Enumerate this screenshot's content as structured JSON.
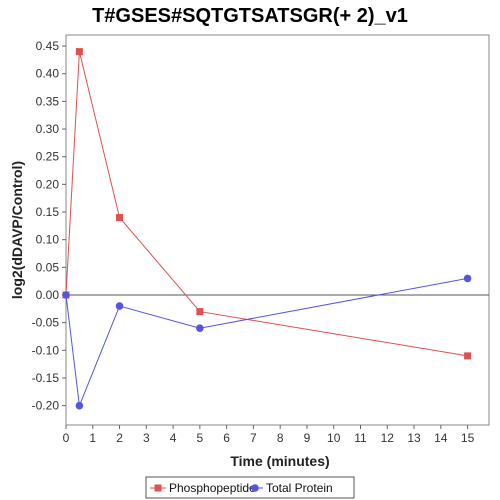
{
  "chart_data": {
    "type": "line",
    "title": "T#GSES#SQTGTSATSGR(+ 2)_v1",
    "xlabel": "Time (minutes)",
    "ylabel": "log2(dDAVP/Control)",
    "xlim": [
      0,
      15.8
    ],
    "ylim": [
      -0.235,
      0.47
    ],
    "x_ticks": [
      0,
      1,
      2,
      3,
      4,
      5,
      6,
      7,
      8,
      9,
      10,
      11,
      12,
      13,
      14,
      15
    ],
    "y_ticks": [
      -0.2,
      -0.15,
      -0.1,
      -0.05,
      0.0,
      0.05,
      0.1,
      0.15,
      0.2,
      0.25,
      0.3,
      0.35,
      0.4,
      0.45
    ],
    "y_tick_labels": [
      "-0.20",
      "-0.15",
      "-0.10",
      "-0.05",
      "0.00",
      "0.05",
      "0.10",
      "0.15",
      "0.20",
      "0.25",
      "0.30",
      "0.35",
      "0.40",
      "0.45"
    ],
    "zero_line": true,
    "grid": false,
    "legend_position": "bottom",
    "series": [
      {
        "name": "Phosphopeptide",
        "marker": "square",
        "color": "#e05050",
        "x": [
          0,
          0.5,
          2,
          5,
          15
        ],
        "y": [
          0.0,
          0.44,
          0.14,
          -0.03,
          -0.11
        ]
      },
      {
        "name": "Total Protein",
        "marker": "circle",
        "color": "#5555e0",
        "x": [
          0,
          0.5,
          2,
          5,
          15
        ],
        "y": [
          0.0,
          -0.2,
          -0.02,
          -0.06,
          0.03
        ]
      }
    ]
  }
}
